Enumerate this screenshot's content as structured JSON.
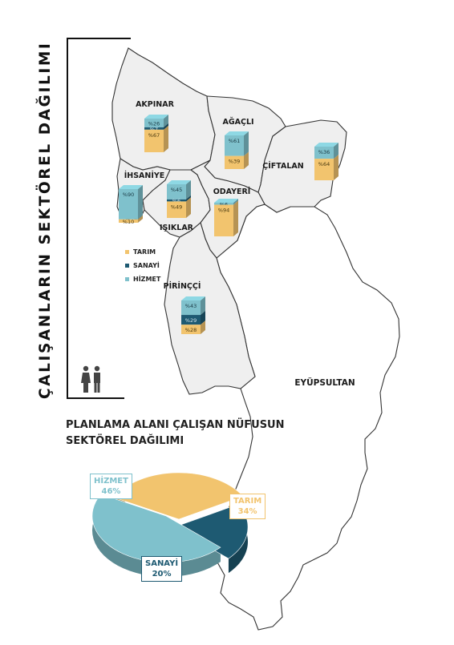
{
  "map_title": "ÇALIŞANLARIN SEKTÖREL DAĞILIMI",
  "districts": [
    {
      "name": "AKPINAR",
      "tarim": "%67",
      "sanayi": "%7",
      "hizmet": "%26",
      "tarim_v": 67,
      "sanayi_v": 7,
      "hizmet_v": 26
    },
    {
      "name": "AĞAÇLI",
      "tarim": "%39",
      "sanayi": "",
      "hizmet": "%61",
      "tarim_v": 39,
      "sanayi_v": 0,
      "hizmet_v": 61
    },
    {
      "name": "ÇİFTALAN",
      "tarim": "%64",
      "sanayi": "",
      "hizmet": "%36",
      "tarim_v": 64,
      "sanayi_v": 0,
      "hizmet_v": 36
    },
    {
      "name": "İHSANİYE",
      "tarim": "%10",
      "sanayi": "",
      "hizmet": "%90",
      "tarim_v": 10,
      "sanayi_v": 0,
      "hizmet_v": 90
    },
    {
      "name": "IŞIKLAR",
      "tarim": "%49",
      "sanayi": "%6",
      "hizmet": "%45",
      "tarim_v": 49,
      "sanayi_v": 6,
      "hizmet_v": 45
    },
    {
      "name": "ODAYERİ",
      "tarim": "%94",
      "sanayi": "",
      "hizmet": "%6",
      "tarim_v": 94,
      "sanayi_v": 0,
      "hizmet_v": 6
    },
    {
      "name": "PİRİNÇÇİ",
      "tarim": "%28",
      "sanayi": "%29",
      "hizmet": "%43",
      "tarim_v": 28,
      "sanayi_v": 29,
      "hizmet_v": 43
    }
  ],
  "neighbor_label": "EYÜPSULTAN",
  "legend": [
    {
      "label": "TARIM",
      "color": "#f2c46e"
    },
    {
      "label": "SANAYİ",
      "color": "#1e5a72"
    },
    {
      "label": "HİZMET",
      "color": "#7fc1cc"
    }
  ],
  "colors": {
    "tarim": "#f2c46e",
    "sanayi": "#1e5a72",
    "hizmet": "#7fc1cc",
    "district_fill": "#efefef",
    "outline": "#333333"
  },
  "icons": [
    "people-icon"
  ],
  "pie": {
    "title_line1": "PLANLAMA ALANI ÇALIŞAN NÜFUSUN",
    "title_line2": "SEKTÖREL DAĞILIMI",
    "slices": [
      {
        "name": "HİZMET",
        "pct": "46%",
        "value": 46
      },
      {
        "name": "TARIM",
        "pct": "34%",
        "value": 34
      },
      {
        "name": "SANAYİ",
        "pct": "20%",
        "value": 20
      }
    ]
  }
}
